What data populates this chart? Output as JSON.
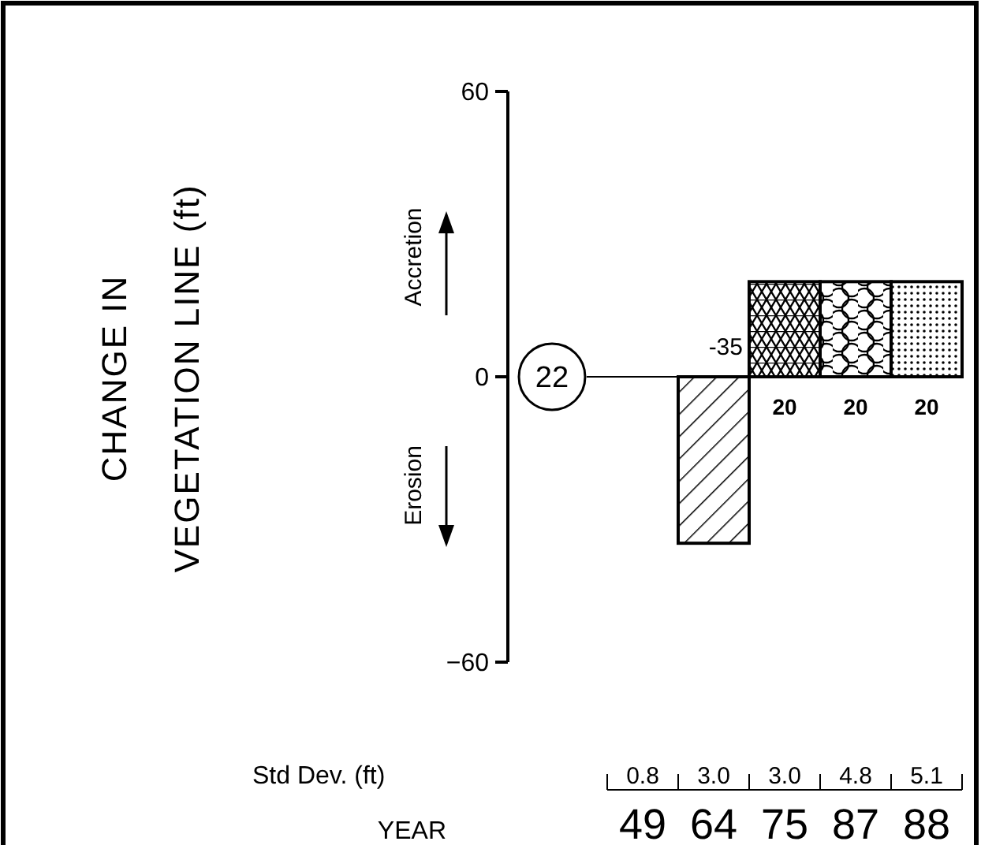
{
  "chart_data": {
    "type": "bar",
    "xlabel": "YEAR",
    "categories": [
      "49",
      "64",
      "75",
      "87",
      "88"
    ],
    "values": [
      null,
      -35,
      20,
      20,
      20
    ],
    "value_labels": [
      null,
      "-35",
      "20",
      "20",
      "20"
    ],
    "colors": [
      "#000000",
      "#000000",
      "#000000",
      "#000000",
      "#000000"
    ],
    "ylim": [
      -60,
      60
    ],
    "yticks": [
      {
        "value": -60,
        "label": "−60"
      },
      0,
      60
    ],
    "annotations": [
      "CHANGE IN VEGETATION LINE (ft)",
      "22",
      "Accretion",
      "Erosion",
      "Std Dev. (ft)",
      "0.8",
      "3.0",
      "3.0",
      "4.8",
      "5.1"
    ]
  }
}
